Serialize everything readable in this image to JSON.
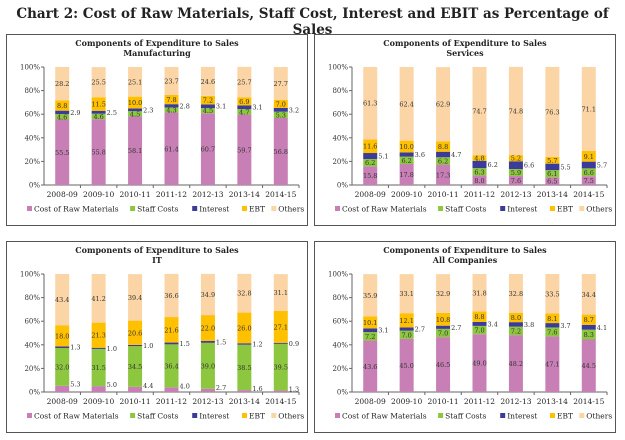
{
  "title": "Chart 2: Cost of Raw Materials, Staff Cost, Interest and EBIT as Percentage of Sales",
  "chart_data": [
    {
      "type": "bar",
      "stacked": true,
      "title": "Components of Expenditure to Sales",
      "subtitle": "Manufacturing",
      "categories": [
        "2008-09",
        "2009-10",
        "2010-11",
        "2011-12",
        "2012-13",
        "2013-14",
        "2014-15"
      ],
      "yticks": [
        "0%",
        "20%",
        "40%",
        "60%",
        "80%",
        "100%"
      ],
      "ylim": [
        0,
        100
      ],
      "legend": "bottom",
      "series": [
        {
          "name": "Cost of Raw Materials",
          "color": "#c77fb5",
          "values": [
            55.5,
            55.8,
            58.1,
            61.4,
            60.7,
            59.7,
            56.8
          ]
        },
        {
          "name": "Staff Costs",
          "color": "#8dc63f",
          "values": [
            4.6,
            4.6,
            4.5,
            4.3,
            4.5,
            4.7,
            5.3
          ]
        },
        {
          "name": "Interest",
          "color": "#3b3b9a",
          "values": [
            2.9,
            2.5,
            2.3,
            2.8,
            3.1,
            3.1,
            3.2
          ]
        },
        {
          "name": "EBT",
          "color": "#ffc000",
          "values": [
            8.8,
            11.5,
            10.0,
            7.8,
            7.2,
            6.9,
            7.0
          ]
        },
        {
          "name": "Others",
          "color": "#fcd5a6",
          "values": [
            28.2,
            25.5,
            25.1,
            23.7,
            24.6,
            25.7,
            27.7
          ]
        }
      ]
    },
    {
      "type": "bar",
      "stacked": true,
      "title": "Components of Expenditure to Sales",
      "subtitle": "Services",
      "categories": [
        "2008-09",
        "2009-10",
        "2010-11",
        "2011-12",
        "2012-13",
        "2013-14",
        "2014-15"
      ],
      "yticks": [
        "0%",
        "20%",
        "40%",
        "60%",
        "80%",
        "100%"
      ],
      "ylim": [
        0,
        100
      ],
      "legend": "bottom",
      "series": [
        {
          "name": "Cost of Raw Materials",
          "color": "#c77fb5",
          "values": [
            15.8,
            17.8,
            17.3,
            8.0,
            7.6,
            6.5,
            7.5
          ]
        },
        {
          "name": "Staff Costs",
          "color": "#8dc63f",
          "values": [
            6.2,
            6.2,
            6.2,
            6.3,
            5.9,
            6.1,
            6.6
          ]
        },
        {
          "name": "Interest",
          "color": "#3b3b9a",
          "values": [
            5.1,
            3.6,
            4.7,
            6.2,
            6.6,
            5.5,
            5.7
          ]
        },
        {
          "name": "EBT",
          "color": "#ffc000",
          "values": [
            11.6,
            10.0,
            8.8,
            4.8,
            5.2,
            5.7,
            9.1
          ]
        },
        {
          "name": "Others",
          "color": "#fcd5a6",
          "values": [
            61.3,
            62.4,
            62.9,
            74.7,
            74.8,
            76.3,
            71.1
          ]
        }
      ]
    },
    {
      "type": "bar",
      "stacked": true,
      "title": "Components of Expenditure to Sales",
      "subtitle": "IT",
      "categories": [
        "2008-09",
        "2009-10",
        "2010-11",
        "2011-12",
        "2012-13",
        "2013-14",
        "2014-15"
      ],
      "yticks": [
        "0%",
        "20%",
        "40%",
        "60%",
        "80%",
        "100%"
      ],
      "ylim": [
        0,
        100
      ],
      "legend": "bottom",
      "series": [
        {
          "name": "Cost of Raw Materials",
          "color": "#c77fb5",
          "values": [
            5.3,
            5.0,
            4.4,
            4.0,
            2.7,
            1.6,
            1.3
          ]
        },
        {
          "name": "Staff Costs",
          "color": "#8dc63f",
          "values": [
            32.0,
            31.5,
            34.5,
            36.4,
            39.0,
            38.5,
            39.5
          ]
        },
        {
          "name": "Interest",
          "color": "#3b3b9a",
          "values": [
            1.3,
            1.0,
            1.0,
            1.5,
            1.5,
            1.2,
            0.9
          ]
        },
        {
          "name": "EBT",
          "color": "#ffc000",
          "values": [
            18.0,
            21.3,
            20.6,
            21.6,
            22.0,
            26.0,
            27.1
          ]
        },
        {
          "name": "Others",
          "color": "#fcd5a6",
          "values": [
            43.4,
            41.2,
            39.4,
            36.6,
            34.9,
            32.8,
            31.1
          ]
        }
      ]
    },
    {
      "type": "bar",
      "stacked": true,
      "title": "Components of Expenditure to Sales",
      "subtitle": "All Companies",
      "categories": [
        "2008-09",
        "2009-10",
        "2010-11",
        "2011-12",
        "2012-13",
        "2013-14",
        "2014-15"
      ],
      "yticks": [
        "0%",
        "20%",
        "40%",
        "60%",
        "80%",
        "100%"
      ],
      "ylim": [
        0,
        100
      ],
      "legend": "bottom",
      "series": [
        {
          "name": "Cost of Raw Materials",
          "color": "#c77fb5",
          "values": [
            43.6,
            45.0,
            46.5,
            49.0,
            48.2,
            47.1,
            44.5
          ]
        },
        {
          "name": "Staff Costs",
          "color": "#8dc63f",
          "values": [
            7.2,
            7.0,
            7.0,
            7.0,
            7.2,
            7.6,
            8.3
          ]
        },
        {
          "name": "Interest",
          "color": "#3b3b9a",
          "values": [
            3.1,
            2.7,
            2.7,
            3.4,
            3.8,
            3.7,
            4.1
          ]
        },
        {
          "name": "EBT",
          "color": "#ffc000",
          "values": [
            10.1,
            12.1,
            10.8,
            8.8,
            8.0,
            8.1,
            8.7
          ]
        },
        {
          "name": "Others",
          "color": "#fcd5a6",
          "values": [
            35.9,
            33.1,
            32.9,
            31.8,
            32.8,
            33.5,
            34.4
          ]
        }
      ]
    }
  ]
}
